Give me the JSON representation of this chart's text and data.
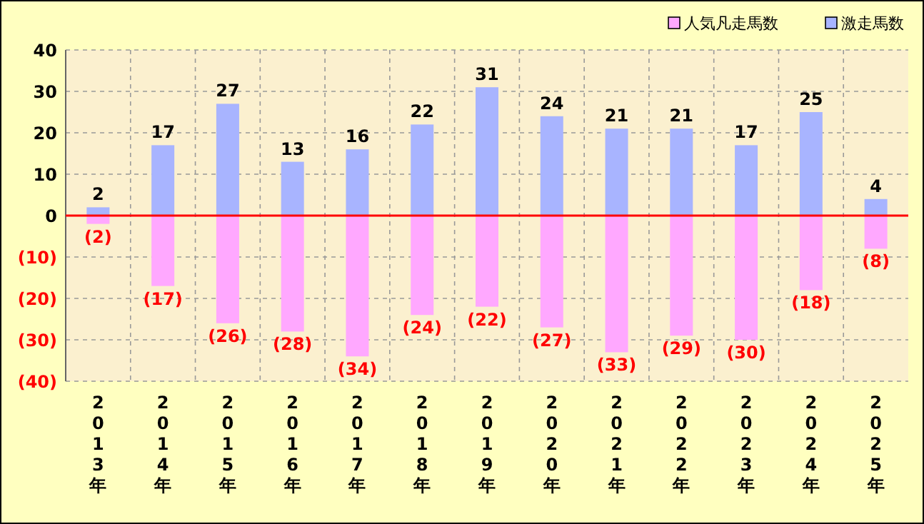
{
  "chart_data": {
    "type": "bar",
    "stacked": true,
    "categories": [
      "2013年",
      "2014年",
      "2015年",
      "2016年",
      "2017年",
      "2018年",
      "2019年",
      "2020年",
      "2021年",
      "2022年",
      "2023年",
      "2024年",
      "2025年"
    ],
    "series": [
      {
        "name": "人気凡走馬数",
        "color": "#ffa8ff",
        "values": [
          -2,
          -17,
          -26,
          -28,
          -34,
          -24,
          -22,
          -27,
          -33,
          -29,
          -30,
          -18,
          -8
        ],
        "value_labels": [
          "(2)",
          "(17)",
          "(26)",
          "(28)",
          "(34)",
          "(24)",
          "(22)",
          "(27)",
          "(33)",
          "(29)",
          "(30)",
          "(18)",
          "(8)"
        ]
      },
      {
        "name": "激走馬数",
        "color": "#a8b4ff",
        "values": [
          2,
          17,
          27,
          13,
          16,
          22,
          31,
          24,
          21,
          21,
          17,
          25,
          4
        ],
        "data_labels": true
      }
    ],
    "ylim": [
      -40,
      40
    ],
    "yticks": [
      {
        "value": -40,
        "label": "(40)"
      },
      {
        "value": -30,
        "label": "(30)"
      },
      {
        "value": -20,
        "label": "(20)"
      },
      {
        "value": -10,
        "label": "(10)"
      },
      0,
      10,
      20,
      30,
      40
    ],
    "grid": true,
    "legend": "top right",
    "ref_lines": [
      {
        "axis": "y",
        "value": 0,
        "color": "#ff0000"
      }
    ]
  }
}
